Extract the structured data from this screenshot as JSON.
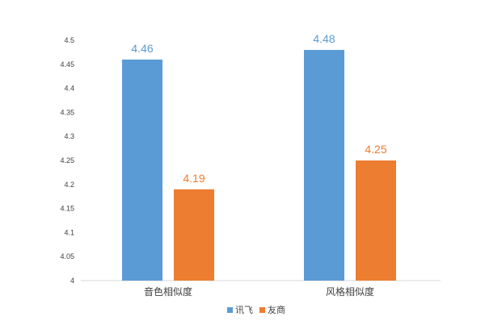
{
  "chart_data": {
    "type": "bar",
    "categories": [
      "音色相似度",
      "风格相似度"
    ],
    "series": [
      {
        "name": "讯飞",
        "values": [
          4.46,
          4.48
        ],
        "color": "#5b9bd5"
      },
      {
        "name": "友商",
        "values": [
          4.19,
          4.25
        ],
        "color": "#ed7d31"
      }
    ],
    "value_labels": [
      [
        "4.46",
        "4.48"
      ],
      [
        "4.19",
        "4.25"
      ]
    ],
    "yticks": [
      4,
      4.05,
      4.1,
      4.15,
      4.2,
      4.25,
      4.3,
      4.35,
      4.4,
      4.45,
      4.5
    ],
    "ytick_labels": [
      "4",
      "4.05",
      "4.1",
      "4.15",
      "4.2",
      "4.25",
      "4.3",
      "4.35",
      "4.4",
      "4.45",
      "4.5"
    ],
    "ylim": [
      4,
      4.5
    ],
    "grid": false,
    "legend_position": "bottom-center",
    "title": "",
    "xlabel": "",
    "ylabel": ""
  }
}
